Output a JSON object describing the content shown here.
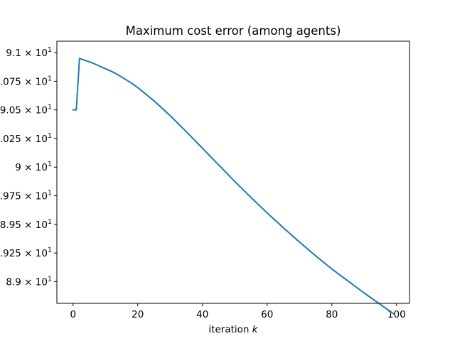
{
  "chart_data": {
    "type": "line",
    "title": "Maximum cost error (among agents)",
    "xlabel": "iteration ",
    "xlabel_var": "k",
    "ylabel": "",
    "xlim": [
      -5,
      104
    ],
    "ylim": [
      88.81,
      91.1
    ],
    "grid": false,
    "yscale": "log",
    "x_ticks": [
      {
        "value": 0,
        "label": "0"
      },
      {
        "value": 20,
        "label": "20"
      },
      {
        "value": 40,
        "label": "40"
      },
      {
        "value": 60,
        "label": "60"
      },
      {
        "value": 80,
        "label": "80"
      },
      {
        "value": 100,
        "label": "100"
      }
    ],
    "y_ticks": [
      {
        "value": 89.0,
        "label": "8.9 × 10",
        "exp": "1"
      },
      {
        "value": 89.25,
        "label": ".925 × 10",
        "exp": "1"
      },
      {
        "value": 89.5,
        "label": "8.95 × 10",
        "exp": "1"
      },
      {
        "value": 89.75,
        "label": ".975 × 10",
        "exp": "1"
      },
      {
        "value": 90.0,
        "label": "9 × 10",
        "exp": "1"
      },
      {
        "value": 90.25,
        "label": ".025 × 10",
        "exp": "1"
      },
      {
        "value": 90.5,
        "label": "9.05 × 10",
        "exp": "1"
      },
      {
        "value": 90.75,
        "label": ".075 × 10",
        "exp": "1"
      },
      {
        "value": 91.0,
        "label": "9.1 × 10",
        "exp": "1"
      }
    ],
    "series": [
      {
        "color": "#1f77b4",
        "x": [
          0,
          1,
          2,
          4,
          6,
          8,
          10,
          12,
          14,
          16,
          18,
          20,
          25,
          30,
          35,
          40,
          45,
          50,
          55,
          60,
          65,
          70,
          75,
          80,
          85,
          90,
          95,
          99
        ],
        "y": [
          90.5,
          90.5,
          90.95,
          90.93,
          90.91,
          90.885,
          90.86,
          90.835,
          90.805,
          90.77,
          90.735,
          90.695,
          90.58,
          90.45,
          90.31,
          90.165,
          90.02,
          89.875,
          89.735,
          89.6,
          89.47,
          89.345,
          89.225,
          89.11,
          89.005,
          88.9,
          88.8,
          88.72
        ]
      }
    ]
  }
}
